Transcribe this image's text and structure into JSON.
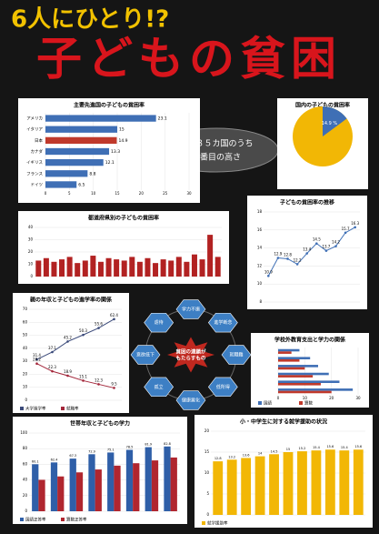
{
  "header": {
    "line1": "6人にひとり!?",
    "line2": "子どもの貧困"
  },
  "callout": {
    "line1": "先進３５カ国のうち",
    "line2": "９番目の高さ"
  },
  "diagram": {
    "center": [
      "貧困の連鎖が",
      "もたらすもの"
    ],
    "nodes": [
      "学力不振",
      "進学断念",
      "就職難",
      "低所得",
      "健康悪化",
      "孤立",
      "意欲低下",
      "虐待"
    ]
  },
  "chart_data": [
    {
      "type": "hbar",
      "title": "主要先進国の子どもの貧困率",
      "categories": [
        "アメリカ",
        "イタリア",
        "日本",
        "カナダ",
        "イギリス",
        "フランス",
        "ドイツ"
      ],
      "values": [
        23.1,
        15.0,
        14.9,
        13.3,
        12.1,
        8.8,
        6.5
      ],
      "colors": [
        "#3f6fb5",
        "#3f6fb5",
        "#c0392b",
        "#3f6fb5",
        "#3f6fb5",
        "#3f6fb5",
        "#3f6fb5"
      ],
      "xlim": [
        0,
        30
      ],
      "xticks": [
        0,
        5,
        10,
        15,
        20,
        25,
        30
      ]
    },
    {
      "type": "pie",
      "title": "国内の子どもの貧困率",
      "values": [
        14.9
      ],
      "value_labels": [
        "14.9 %"
      ],
      "colors": [
        "#3f6fb5"
      ]
    },
    {
      "type": "bar",
      "title": "都道府県別の子どもの貧困率",
      "series": [
        {
          "color": "#b22222",
          "values": [
            13,
            15,
            12,
            14,
            16,
            11,
            13,
            17,
            12,
            15,
            14,
            13,
            16,
            12,
            15,
            11,
            14,
            13,
            16,
            12,
            18,
            14,
            34,
            16
          ]
        }
      ],
      "ylim": [
        0,
        40
      ],
      "yticks": [
        0,
        10,
        20,
        30,
        40
      ]
    },
    {
      "type": "line",
      "title": "子どもの貧困率の推移",
      "series": [
        {
          "color": "#3f6fb5",
          "values": [
            10.9,
            12.9,
            12.8,
            12.2,
            13.4,
            14.5,
            13.7,
            14.2,
            15.7,
            16.3
          ],
          "labelled": true
        }
      ],
      "ylim": [
        8,
        18
      ],
      "yticks": [
        8,
        10,
        12,
        14,
        16,
        18
      ]
    },
    {
      "type": "line",
      "title": "親の年収と子どもの進学率の関係",
      "series": [
        {
          "name": "大学進学率",
          "color": "#3b4a7a",
          "values": [
            31.4,
            37.1,
            45.2,
            50.3,
            55.6,
            62.4
          ],
          "labelled": true
        },
        {
          "name": "就職率",
          "color": "#a3263a",
          "values": [
            28.2,
            22.3,
            18.9,
            15.1,
            12.3,
            9.5
          ],
          "labelled": true
        }
      ],
      "ylim": [
        0,
        70
      ],
      "yticks": [
        0,
        10,
        20,
        30,
        40,
        50,
        60,
        70
      ]
    },
    {
      "type": "hbar",
      "title": "学校外教育支出と学力の関係",
      "series": [
        {
          "name": "国語",
          "color": "#3f6fb5",
          "values": [
            8,
            12,
            15,
            19,
            23,
            28
          ]
        },
        {
          "name": "算数",
          "color": "#c0392b",
          "values": [
            5,
            8,
            10,
            13,
            16,
            20
          ]
        }
      ],
      "xlim": [
        0,
        30
      ],
      "xticks": [
        0,
        10,
        20,
        30
      ]
    },
    {
      "type": "bar",
      "title": "世帯年収と子どもの学力",
      "series": [
        {
          "name": "国語正答率",
          "color": "#2f5fa8",
          "values": [
            60.1,
            62.4,
            67.3,
            72.9,
            75.1,
            78.5,
            81.9,
            82.8
          ],
          "labelled": true
        },
        {
          "name": "算数正答率",
          "color": "#b0262f",
          "values": [
            40.2,
            44.5,
            49.7,
            53.4,
            58.3,
            61.4,
            65.0,
            68.7
          ]
        }
      ],
      "ylim": [
        0,
        100
      ],
      "yticks": [
        0,
        20,
        40,
        60,
        80,
        100
      ]
    },
    {
      "type": "bar",
      "title": "小・中学生に対する就学援助の状況",
      "series": [
        {
          "name": "就学援助率",
          "color": "#f2b705",
          "values": [
            12.8,
            13.2,
            13.6,
            14.0,
            14.5,
            15.0,
            15.2,
            15.4,
            15.6,
            15.4,
            15.6
          ],
          "labelled": true
        }
      ],
      "ylim": [
        0,
        20
      ],
      "yticks": [
        0,
        5,
        10,
        15,
        20
      ]
    }
  ]
}
